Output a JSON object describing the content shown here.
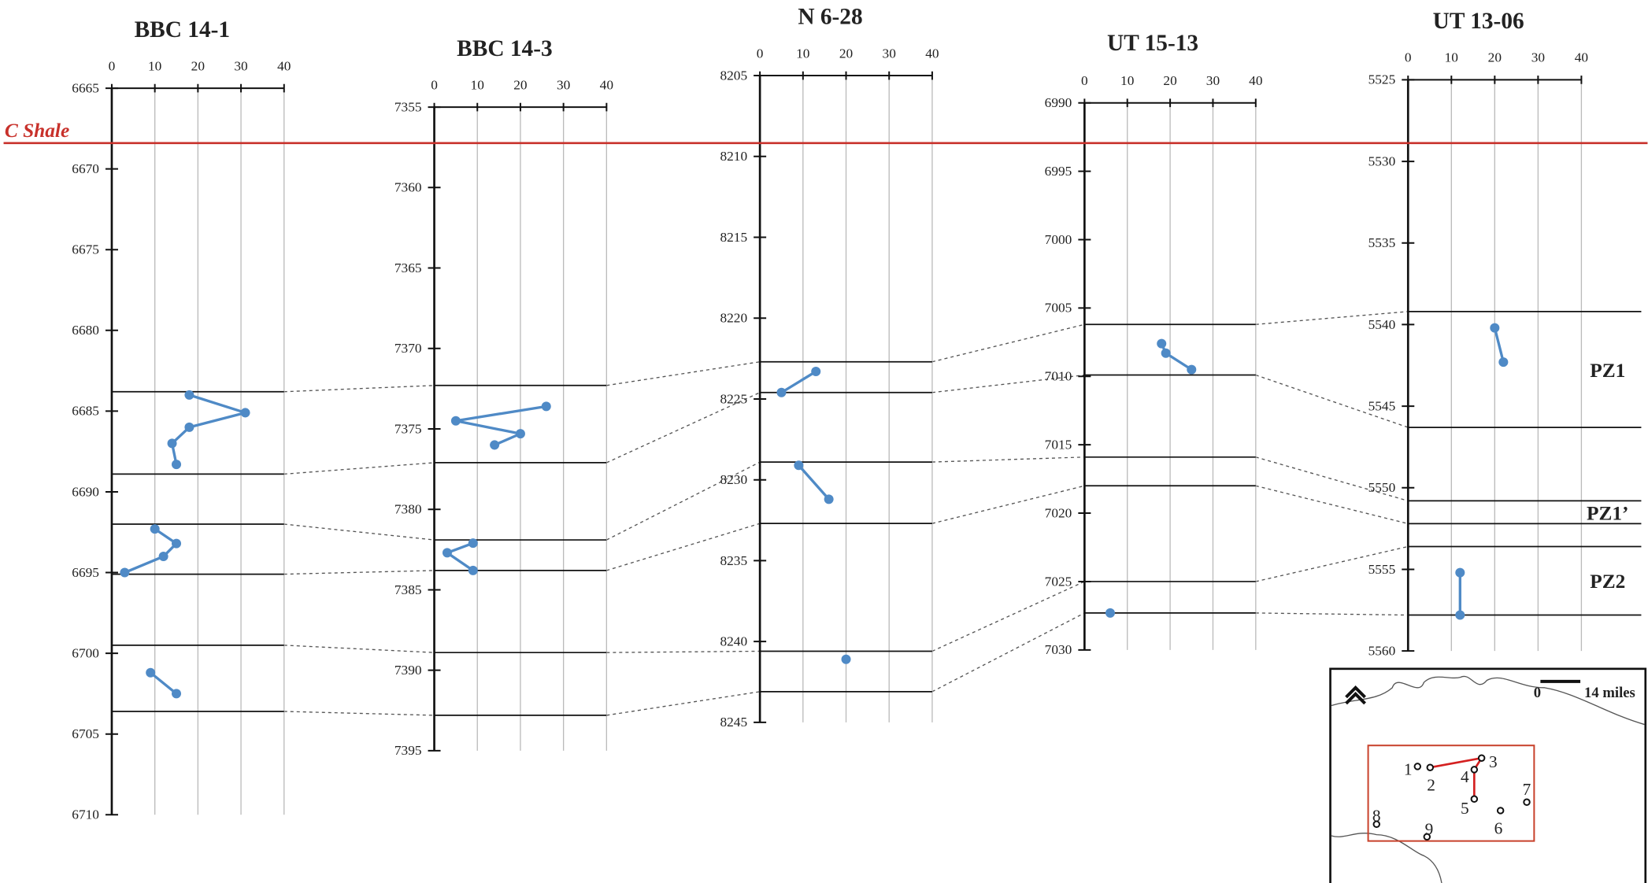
{
  "chart_data": {
    "type": "line",
    "marker": {
      "label": "C Shale",
      "color": "#c8312b"
    },
    "series_color": "#4f8ac6",
    "x_range": [
      0,
      40
    ],
    "x_ticks": [
      "0",
      "10",
      "20",
      "30",
      "40"
    ],
    "grid": true,
    "zone_labels": [
      "PZ1",
      "PZ1’",
      "PZ2"
    ],
    "panels": [
      {
        "title": "BBC 14-1",
        "ylim": [
          6665,
          6710
        ],
        "y_ticks": [
          "6665",
          "6670",
          "6675",
          "6680",
          "6685",
          "6690",
          "6695",
          "6700",
          "6705",
          "6710"
        ],
        "marker_depth": 6668.4,
        "boundaries": [
          6683.8,
          6688.9,
          6692.0,
          6695.1,
          6699.5,
          6703.6
        ],
        "segments": [
          [
            [
              18,
              6684.0
            ],
            [
              31,
              6685.1
            ],
            [
              18,
              6686.0
            ],
            [
              14,
              6687.0
            ],
            [
              15,
              6688.3
            ]
          ],
          [
            [
              10,
              6692.3
            ],
            [
              15,
              6693.2
            ],
            [
              12,
              6694.0
            ],
            [
              3,
              6695.0
            ]
          ],
          [
            [
              9,
              6701.2
            ],
            [
              15,
              6702.5
            ]
          ]
        ]
      },
      {
        "title": "BBC 14-3",
        "ylim": [
          7355,
          7395
        ],
        "y_ticks": [
          "7355",
          "7360",
          "7365",
          "7370",
          "7375",
          "7380",
          "7385",
          "7390",
          "7395"
        ],
        "marker_depth": 7357.2,
        "boundaries": [
          7372.3,
          7377.1,
          7381.9,
          7383.8,
          7388.9,
          7392.8
        ],
        "segments": [
          [
            [
              26,
              7373.6
            ],
            [
              5,
              7374.5
            ],
            [
              20,
              7375.3
            ],
            [
              14,
              7376.0
            ]
          ],
          [
            [
              9,
              7382.1
            ],
            [
              3,
              7382.7
            ],
            [
              9,
              7383.8
            ]
          ]
        ]
      },
      {
        "title": "N 6-28",
        "ylim": [
          8205,
          8245
        ],
        "y_ticks": [
          "8205",
          "8210",
          "8215",
          "8220",
          "8225",
          "8230",
          "8235",
          "8240",
          "8245"
        ],
        "marker_depth": 8209.2,
        "boundaries": [
          8222.7,
          8224.6,
          8228.9,
          8232.7,
          8240.6,
          8243.1
        ],
        "segments": [
          [
            [
              13,
              8223.3
            ],
            [
              5,
              8224.6
            ]
          ],
          [
            [
              9,
              8229.1
            ],
            [
              16,
              8231.2
            ]
          ],
          [
            [
              20,
              8241.1
            ]
          ]
        ]
      },
      {
        "title": "UT 15-13",
        "ylim": [
          6990,
          7030
        ],
        "y_ticks": [
          "6990",
          "6995",
          "7000",
          "7005",
          "7010",
          "7015",
          "7020",
          "7025",
          "7030"
        ],
        "marker_depth": 6993.1,
        "boundaries": [
          7006.2,
          7009.9,
          7015.9,
          7018.0,
          7025.0,
          7027.3
        ],
        "segments": [
          [
            [
              18,
              7007.6
            ],
            [
              19,
              7008.3
            ],
            [
              25,
              7009.5
            ]
          ],
          [
            [
              6,
              7027.3
            ]
          ]
        ]
      },
      {
        "title": "UT 13-06",
        "ylim": [
          5525,
          5560
        ],
        "y_ticks": [
          "5525",
          "5530",
          "5535",
          "5540",
          "5545",
          "5550",
          "5555",
          "5560"
        ],
        "marker_depth": 5528.9,
        "boundaries": [
          5539.2,
          5546.3,
          5550.8,
          5552.2,
          5553.6,
          5557.8
        ],
        "segments": [
          [
            [
              20,
              5540.2
            ],
            [
              22,
              5542.3
            ]
          ],
          [
            [
              12,
              5555.2
            ],
            [
              12,
              5557.8
            ]
          ]
        ]
      }
    ]
  },
  "map": {
    "scale_start": "0",
    "scale_label": "14 miles",
    "north_icon": "north-arrow-icon",
    "wells": [
      "1",
      "2",
      "3",
      "4",
      "5",
      "6",
      "7",
      "8",
      "9"
    ]
  }
}
